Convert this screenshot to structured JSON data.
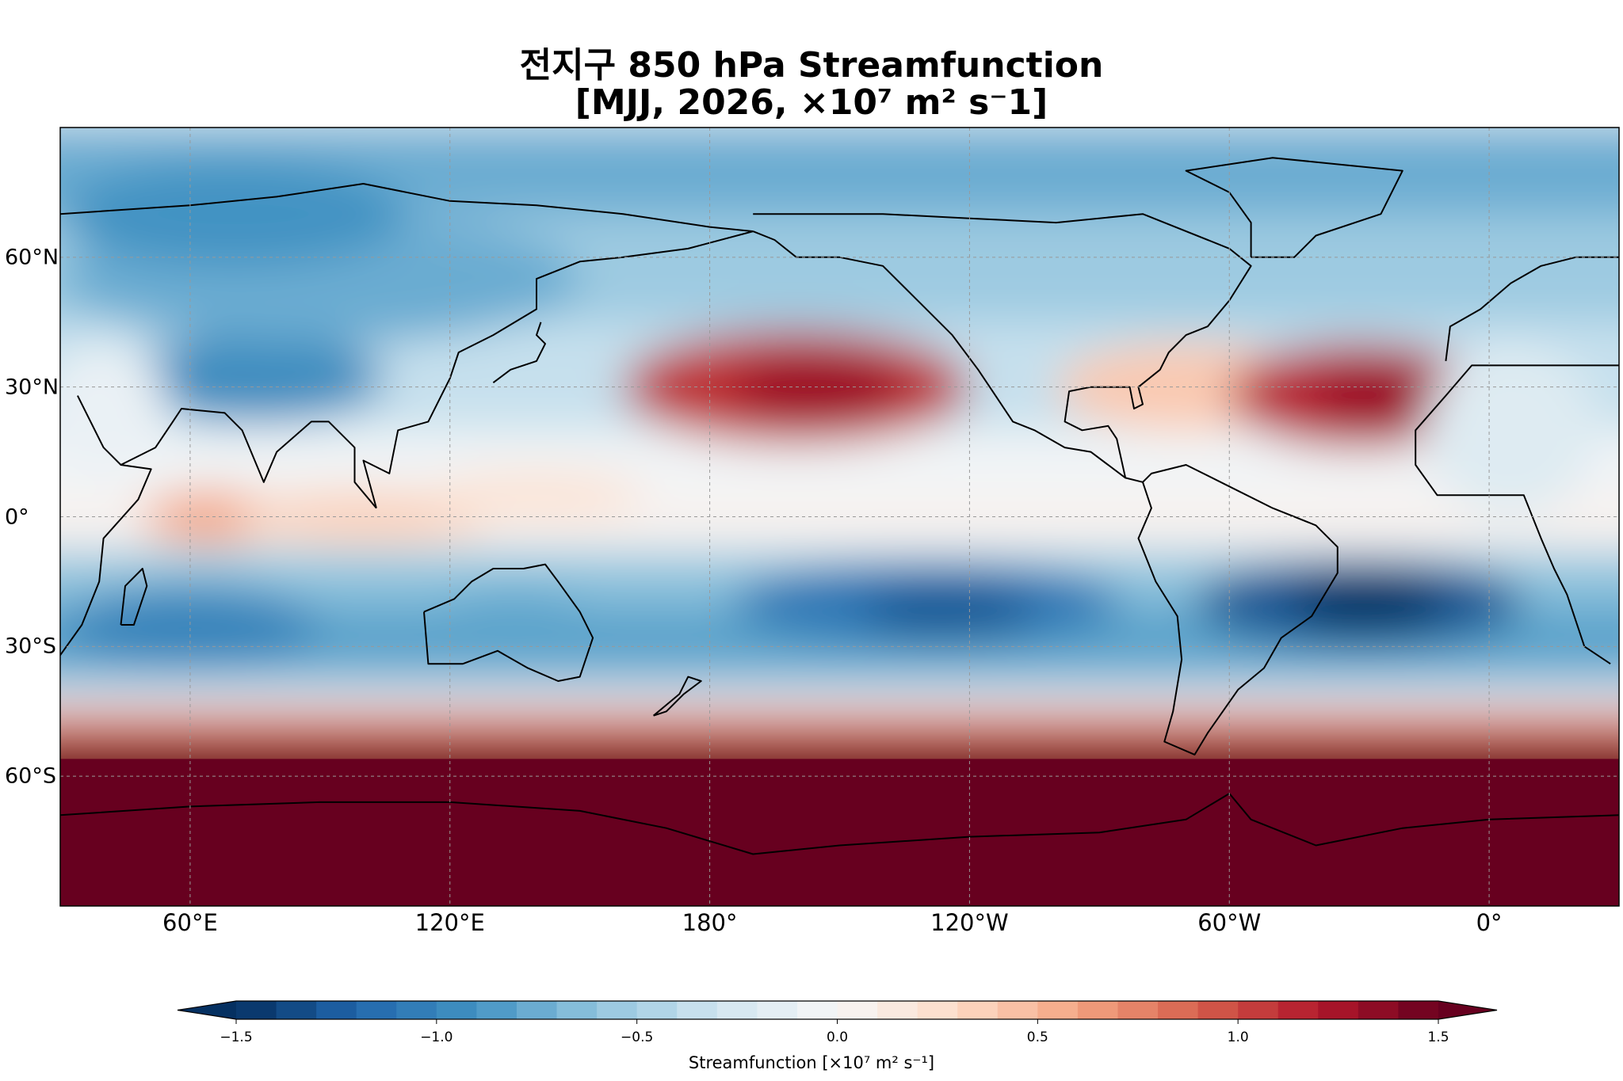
{
  "title": {
    "line1": "전지구 850 hPa Streamfunction",
    "line2": "[MJJ, 2026, ×10⁷ m² s⁻1]"
  },
  "map": {
    "projection": "PlateCarree, central_longitude 180",
    "lon_range": [
      30,
      390
    ],
    "lat_range": [
      -90,
      90
    ],
    "gridlines": true,
    "coastlines": true,
    "x_ticks": [
      {
        "lon": 60,
        "label": "60°E"
      },
      {
        "lon": 120,
        "label": "120°E"
      },
      {
        "lon": 180,
        "label": "180°"
      },
      {
        "lon": 240,
        "label": "120°W"
      },
      {
        "lon": 300,
        "label": "60°W"
      },
      {
        "lon": 360,
        "label": "0°"
      }
    ],
    "y_ticks": [
      {
        "lat": 60,
        "label": "60°N"
      },
      {
        "lat": 30,
        "label": "30°N"
      },
      {
        "lat": 0,
        "label": "0°"
      },
      {
        "lat": -30,
        "label": "30°S"
      },
      {
        "lat": -60,
        "label": "60°S"
      }
    ],
    "colormap": "RdBu_r",
    "field": "850 hPa streamfunction, MJJ 2026 (x10^7 m^2 s^-1)"
  },
  "colorbar": {
    "min": -1.5,
    "max": 1.5,
    "levels": 31,
    "extend": "both",
    "ticks": [
      {
        "value": -1.5,
        "label": "−1.5"
      },
      {
        "value": -1.0,
        "label": "−1.0"
      },
      {
        "value": -0.5,
        "label": "−0.5"
      },
      {
        "value": 0.0,
        "label": "0.0"
      },
      {
        "value": 0.5,
        "label": "0.5"
      },
      {
        "value": 1.0,
        "label": "1.0"
      },
      {
        "value": 1.5,
        "label": "1.5"
      }
    ],
    "label": "Streamfunction [×10⁷ m² s⁻¹]"
  },
  "colors": {
    "rdbu": [
      "#053061",
      "#2166ac",
      "#4393c3",
      "#92c5de",
      "#d1e5f0",
      "#f7f7f7",
      "#fddbc7",
      "#f4a582",
      "#d6604d",
      "#b2182b",
      "#67001f"
    ]
  }
}
